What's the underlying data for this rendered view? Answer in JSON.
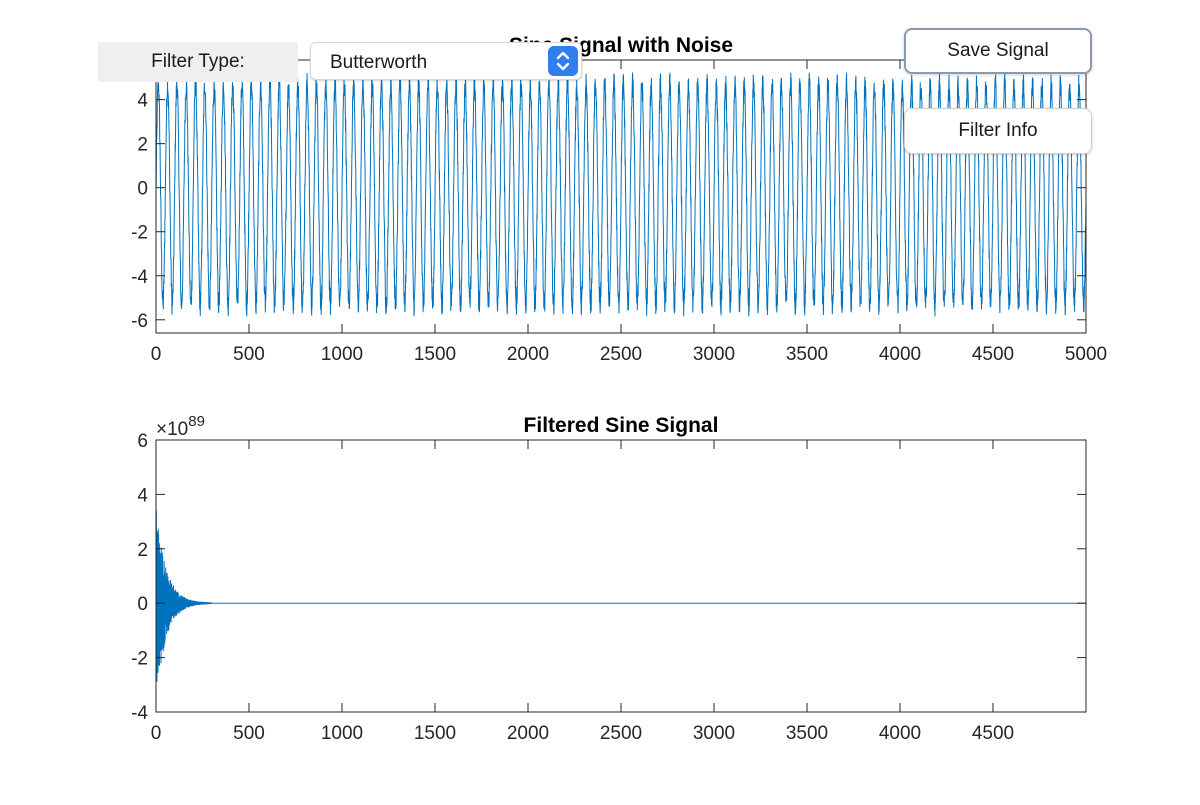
{
  "controls": {
    "filter_type_label": "Filter Type:",
    "filter_type_value": "Butterworth",
    "save_button": "Save Signal",
    "info_button": "Filter Info"
  },
  "colors": {
    "line": "#0072BD",
    "axis": "#262626",
    "select_accent": "#2F7FF0"
  },
  "chart_data": [
    {
      "type": "line",
      "title": "Sine Signal with Noise",
      "xlabel": "",
      "ylabel": "",
      "xlim": [
        0,
        5000
      ],
      "ylim": [
        -6.6,
        5.8
      ],
      "xticks": [
        0,
        500,
        1000,
        1500,
        2000,
        2500,
        3000,
        3500,
        4000,
        4500,
        5000
      ],
      "yticks": [
        -6,
        -4,
        -2,
        0,
        2,
        4
      ],
      "ytick_labels": [
        "-6",
        "-4",
        "-2",
        "0",
        "2",
        "4"
      ],
      "y_exponent": "",
      "grid": false,
      "series": [
        {
          "description": "sine wave, amplitude ~5, ~50 samples per period, plus random noise ~0.5",
          "amplitude": 5,
          "offset": -0.3,
          "period": 50,
          "noise": 0.55,
          "n_samples": 5000
        }
      ]
    },
    {
      "type": "line",
      "title": "Filtered Sine Signal",
      "xlabel": "",
      "ylabel": "",
      "xlim": [
        0,
        5000
      ],
      "ylim": [
        -4,
        6
      ],
      "xticks": [
        0,
        500,
        1000,
        1500,
        2000,
        2500,
        3000,
        3500,
        4000,
        4500
      ],
      "yticks": [
        -4,
        -2,
        0,
        2,
        4,
        6
      ],
      "ytick_labels": [
        "-4",
        "-2",
        "0",
        "2",
        "4",
        "6"
      ],
      "y_exponent_base": "×10",
      "y_exponent_power": "89",
      "grid": false,
      "series": [
        {
          "description": "unstable filter output: large oscillation at start decaying to 0 by ~300",
          "initial_amplitude": 3.6,
          "decay_end": 300,
          "n_samples": 5000
        }
      ]
    }
  ]
}
